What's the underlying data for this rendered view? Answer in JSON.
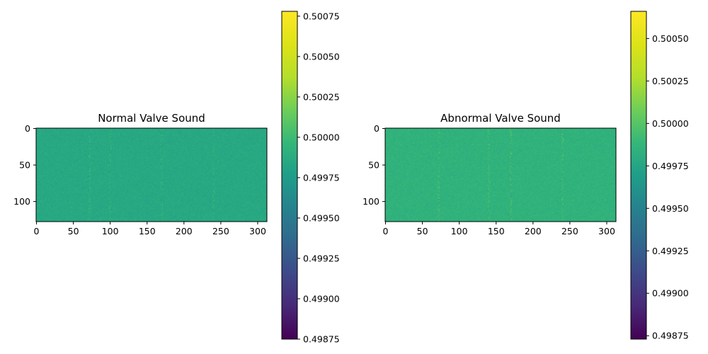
{
  "chart_data": [
    {
      "type": "heatmap",
      "title": "Normal Valve Sound",
      "xlabel": "",
      "ylabel": "",
      "x_ticks": [
        0,
        50,
        100,
        150,
        200,
        250,
        300
      ],
      "y_ticks": [
        0,
        50,
        100
      ],
      "xlim": [
        0,
        313
      ],
      "ylim": [
        128,
        0
      ],
      "colormap": "viridis",
      "grid": false,
      "colorbar": {
        "min": 0.49875,
        "max": 0.50078,
        "ticks": [
          "0.49875",
          "0.49900",
          "0.49925",
          "0.49950",
          "0.49975",
          "0.50000",
          "0.50025",
          "0.50050",
          "0.50075"
        ]
      },
      "dominant_value": 0.49985,
      "bright_stripe_columns": [
        72,
        100,
        170,
        240
      ]
    },
    {
      "type": "heatmap",
      "title": "Abnormal Valve Sound",
      "xlabel": "",
      "ylabel": "",
      "x_ticks": [
        0,
        50,
        100,
        150,
        200,
        250,
        300
      ],
      "y_ticks": [
        0,
        50,
        100
      ],
      "xlim": [
        0,
        313
      ],
      "ylim": [
        128,
        0
      ],
      "colormap": "viridis",
      "grid": false,
      "colorbar": {
        "min": 0.49873,
        "max": 0.50066,
        "ticks": [
          "0.49875",
          "0.49900",
          "0.49925",
          "0.49950",
          "0.49975",
          "0.50000",
          "0.50025",
          "0.50050"
        ]
      },
      "dominant_value": 0.49985,
      "bright_stripe_columns": [
        72,
        140,
        170,
        240
      ]
    }
  ]
}
